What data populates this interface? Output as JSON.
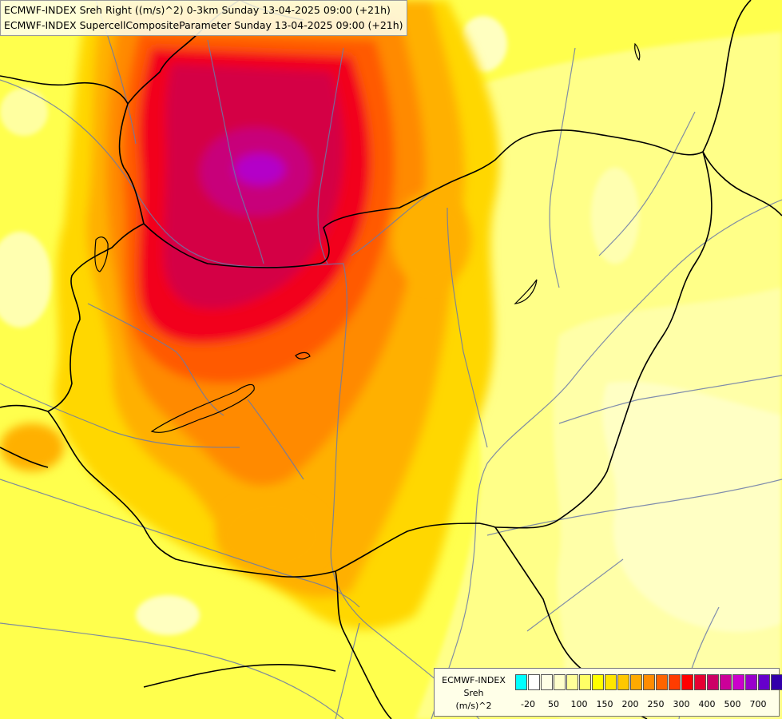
{
  "titles": {
    "line1": "ECMWF-INDEX Sreh Right ((m/s)^2) 0-3km Sunday 13-04-2025 09:00 (+21h)",
    "line2": "ECMWF-INDEX SupercellCompositeParameter Sunday 13-04-2025 09:00 (+21h)"
  },
  "legend": {
    "source": "ECMWF-INDEX",
    "variable": "Sreh",
    "unit": "(m/s)^2",
    "colors": [
      "#00ffff",
      "#ffffff",
      "#ffffe6",
      "#ffffcc",
      "#ffff99",
      "#ffff66",
      "#ffff00",
      "#ffe600",
      "#ffc800",
      "#ffaa00",
      "#ff8c00",
      "#ff6400",
      "#ff3c00",
      "#ff0000",
      "#e60032",
      "#cc0066",
      "#cc0099",
      "#cc00cc",
      "#9900cc",
      "#6600cc",
      "#3300aa",
      "#000080"
    ],
    "ticks": [
      "-20",
      "50",
      "100",
      "150",
      "200",
      "250",
      "300",
      "400",
      "500",
      "700"
    ]
  },
  "field": {
    "min_value": -20,
    "max_value": 700,
    "peak_value_approx": 450
  }
}
